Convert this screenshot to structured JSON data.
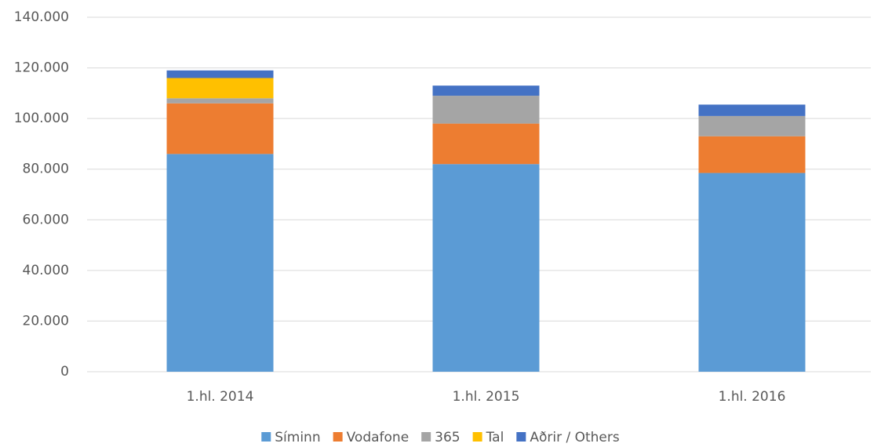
{
  "chart_data": {
    "type": "stacked_bar",
    "categories": [
      "1.hl. 2014",
      "1.hl. 2015",
      "1.hl. 2016"
    ],
    "series": [
      {
        "name": "Síminn",
        "color": "#5b9bd5",
        "values": [
          86000,
          82000,
          78500
        ]
      },
      {
        "name": "Vodafone",
        "color": "#ed7d31",
        "values": [
          20000,
          16000,
          14500
        ]
      },
      {
        "name": "365",
        "color": "#a5a5a5",
        "values": [
          2000,
          11000,
          8000
        ]
      },
      {
        "name": "Tal",
        "color": "#ffc000",
        "values": [
          8000,
          0,
          0
        ]
      },
      {
        "name": "Aðrir / Others",
        "color": "#4472c4",
        "values": [
          3000,
          4000,
          4500
        ]
      }
    ],
    "ylim": [
      0,
      140000
    ],
    "yticks": [
      0,
      {
        "value": 20000,
        "label": "20.000"
      },
      {
        "value": 40000,
        "label": "40.000"
      },
      {
        "value": 60000,
        "label": "60.000"
      },
      {
        "value": 80000,
        "label": "80.000"
      },
      {
        "value": 100000,
        "label": "100.000"
      },
      {
        "value": 120000,
        "label": "120.000"
      },
      {
        "value": 140000,
        "label": "140.000"
      }
    ],
    "grid": true,
    "legend": "bottom"
  }
}
